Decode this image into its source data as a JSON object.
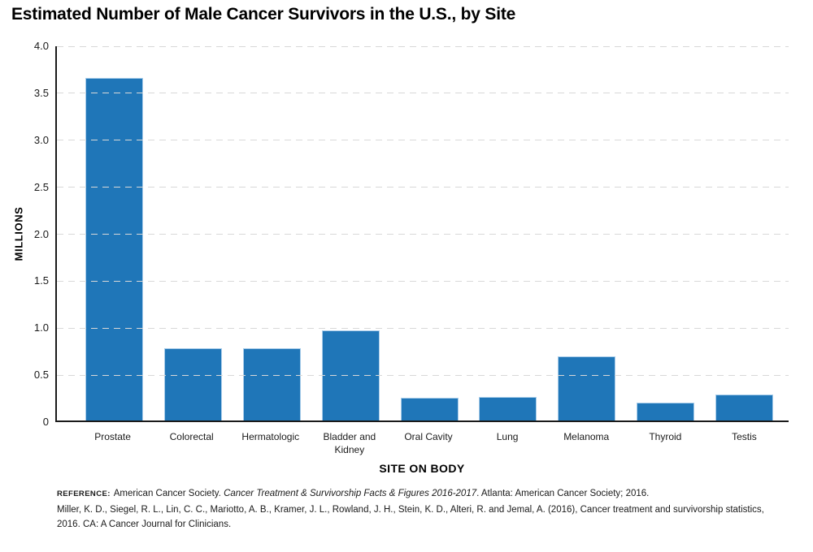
{
  "chart_data": {
    "type": "bar",
    "title": "Estimated Number of Male Cancer Survivors in the U.S., by Site",
    "xlabel": "SITE ON BODY",
    "ylabel": "MILLIONS",
    "categories": [
      "Prostate",
      "Colorectal",
      "Hermatologic",
      "Bladder and Kidney",
      "Oral Cavity",
      "Lung",
      "Melanoma",
      "Thyroid",
      "Testis"
    ],
    "values": [
      3.65,
      0.77,
      0.77,
      0.96,
      0.24,
      0.25,
      0.68,
      0.19,
      0.28
    ],
    "units": "millions",
    "ylim": [
      0,
      4.0
    ],
    "yticks": [
      0,
      0.5,
      1.0,
      1.5,
      2.0,
      2.5,
      3.0,
      3.5,
      4.0
    ],
    "ytick_labels": [
      "0",
      "0.5",
      "1.0",
      "1.5",
      "2.0",
      "2.5",
      "3.0",
      "3.5",
      "4.0"
    ],
    "grid": "horizontal dashed, on",
    "legend": "none",
    "bar_color": "#1f76b8",
    "bar_edge_color": "#a9cdea",
    "axis_color": "#1a1a1a",
    "gridline_color": "#d8d8d8"
  },
  "footer": {
    "reference_label": "REFERENCE:",
    "reference_pre": "American Cancer Society. ",
    "reference_italic": "Cancer Treatment & Survivorship Facts & Figures 2016-2017",
    "reference_post": ". Atlanta: American Cancer Society; 2016.",
    "citation": "Miller, K. D., Siegel, R. L., Lin, C. C., Mariotto, A. B., Kramer, J. L., Rowland, J. H., Stein, K. D., Alteri, R. and Jemal, A. (2016), Cancer treatment and survivorship statistics, 2016. CA: A Cancer Journal for Clinicians."
  }
}
